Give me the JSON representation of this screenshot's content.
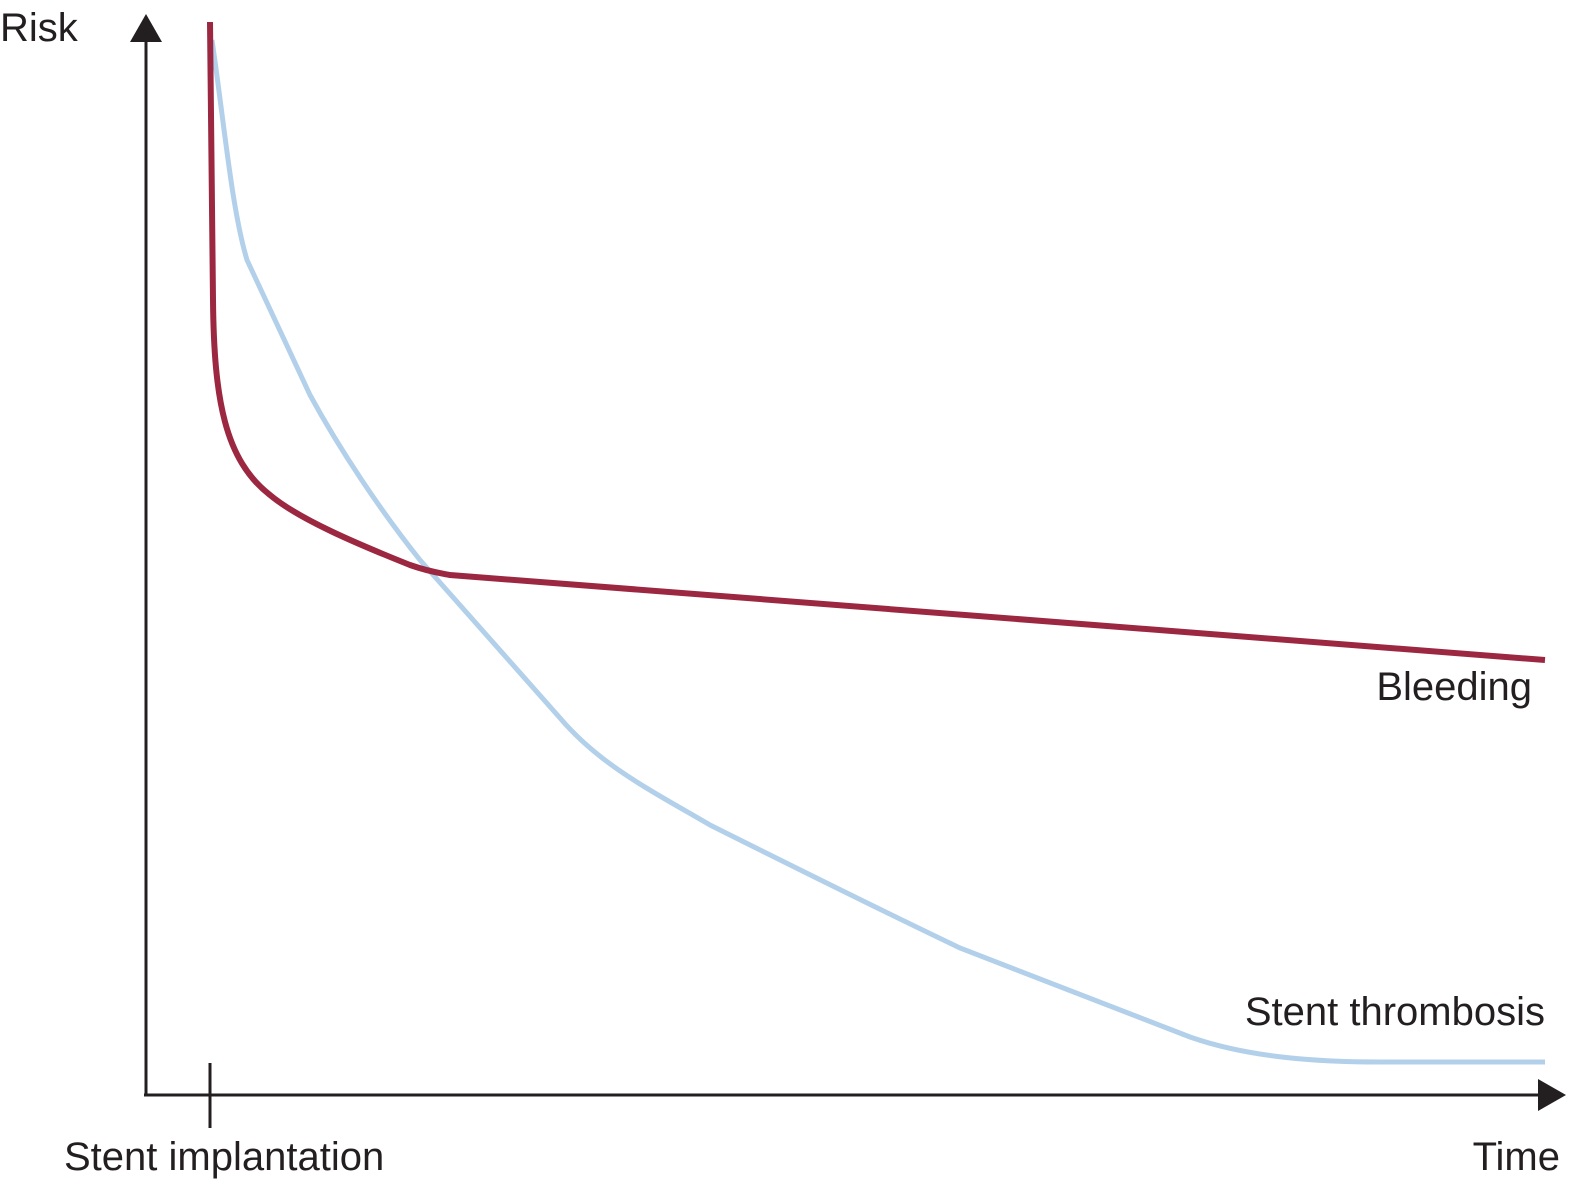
{
  "axes": {
    "y_label": "Risk",
    "x_label": "Time",
    "x_marker": "Stent implantation"
  },
  "curves": [
    {
      "label": "Bleeding",
      "color": "#9b2740"
    },
    {
      "label": "Stent thrombosis",
      "color": "#b3d0ea"
    }
  ]
}
